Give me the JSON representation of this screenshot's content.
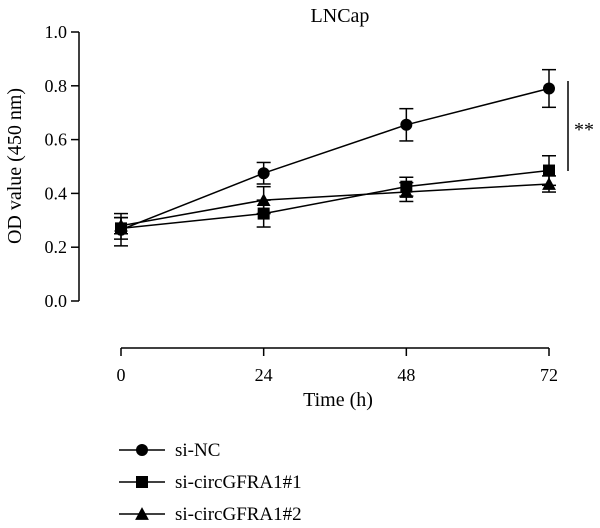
{
  "chart_data": {
    "type": "line",
    "title": "LNCap",
    "xlabel": "Time (h)",
    "ylabel": "OD value (450 nm)",
    "x": [
      0,
      24,
      48,
      72
    ],
    "xticks": [
      "0",
      "24",
      "48",
      "72"
    ],
    "xlim": [
      0,
      72
    ],
    "ylim": [
      0,
      1.0
    ],
    "yticks": [
      "0.0",
      "0.2",
      "0.4",
      "0.6",
      "0.8",
      "1.0"
    ],
    "grid": false,
    "legend_position": "bottom-left",
    "significance_label": "**",
    "series": [
      {
        "name": "si-NC",
        "marker": "circle",
        "values": [
          0.265,
          0.475,
          0.655,
          0.79
        ],
        "errors": [
          0.06,
          0.04,
          0.06,
          0.07
        ]
      },
      {
        "name": "si-circGFRA1#1",
        "marker": "square",
        "values": [
          0.27,
          0.325,
          0.425,
          0.485
        ],
        "errors": [
          0.04,
          0.05,
          0.035,
          0.055
        ]
      },
      {
        "name": "si-circGFRA1#2",
        "marker": "triangle",
        "values": [
          0.28,
          0.375,
          0.405,
          0.435
        ],
        "errors": [
          0.03,
          0.05,
          0.035,
          0.03
        ]
      }
    ],
    "color": "#000000"
  }
}
